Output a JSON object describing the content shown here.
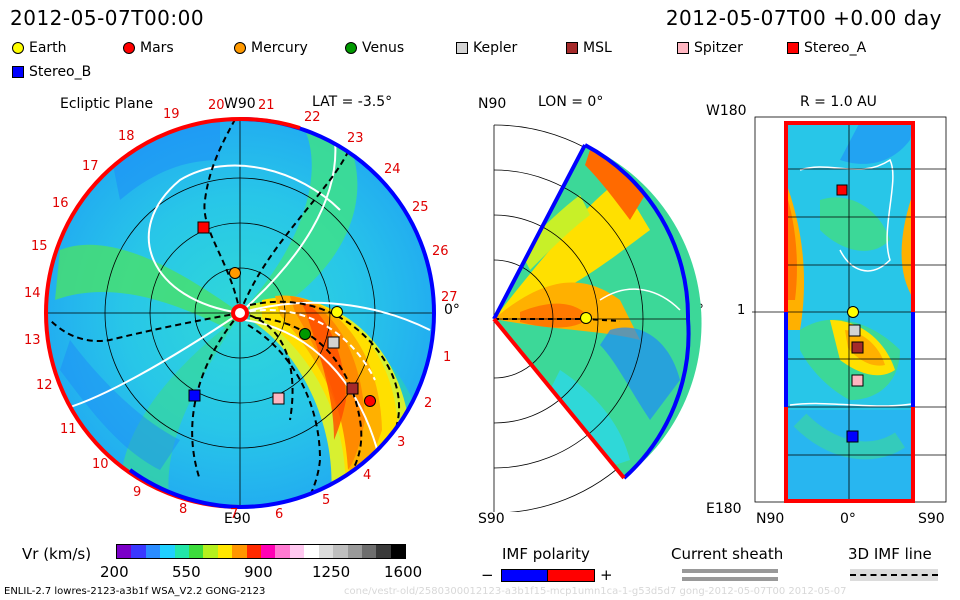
{
  "header": {
    "left_time": "2012-05-07T00:00",
    "right_time": "2012-05-07T00 +0.00 day"
  },
  "legend": {
    "items": [
      {
        "label": "Earth",
        "color": "#ffff00",
        "shape": "circle"
      },
      {
        "label": "Mars",
        "color": "#ff0000",
        "shape": "circle"
      },
      {
        "label": "Mercury",
        "color": "#ff9900",
        "shape": "circle"
      },
      {
        "label": "Venus",
        "color": "#009900",
        "shape": "circle"
      },
      {
        "label": "Kepler",
        "color": "#d3d3d3",
        "shape": "square"
      },
      {
        "label": "MSL",
        "color": "#a52a2a",
        "shape": "square"
      },
      {
        "label": "Spitzer",
        "color": "#ffb6c1",
        "shape": "square"
      },
      {
        "label": "Stereo_A",
        "color": "#ff0000",
        "shape": "square"
      },
      {
        "label": "Stereo_B",
        "color": "#0000ff",
        "shape": "square"
      }
    ]
  },
  "ecliptic": {
    "title": "Ecliptic Plane",
    "lat_label": "LAT = -3.5°",
    "top_label": "W90",
    "bottom_label": "E90",
    "right_label": "0°",
    "ticks": [
      "1",
      "2",
      "3",
      "4",
      "5",
      "6",
      "7",
      "8",
      "9",
      "10",
      "11",
      "12",
      "13",
      "14",
      "15",
      "16",
      "17",
      "18",
      "19",
      "20",
      "21",
      "22",
      "23",
      "24",
      "25",
      "26",
      "27"
    ]
  },
  "meridional": {
    "lon_label": "LON = 0°",
    "top_label": "N90",
    "bottom_label": "S90",
    "right_label": "0°"
  },
  "radial": {
    "title": "R = 1.0 AU",
    "top_left_label": "W180",
    "bottom_left_label": "E180",
    "left_mid_label": "1",
    "x_labels": [
      "N90",
      "0°",
      "S90"
    ]
  },
  "colorbar": {
    "label": "Vr (km/s)",
    "ticks": [
      "200",
      "550",
      "900",
      "1250",
      "1600"
    ],
    "colors": [
      "#7b00c8",
      "#3a38ff",
      "#2a8cff",
      "#1fd0ff",
      "#22e6a8",
      "#3cdc3c",
      "#b4f01e",
      "#ffe600",
      "#ff9600",
      "#ff2a00",
      "#ff00b4",
      "#ff7ad2",
      "#ffc8f0",
      "#ffffff",
      "#dcdcdc",
      "#bebebe",
      "#9a9a9a",
      "#6e6e6e",
      "#3a3a3a",
      "#000000"
    ]
  },
  "imf": {
    "label": "IMF polarity",
    "minus": "−",
    "plus": "+"
  },
  "current_sheath": {
    "label": "Current sheath"
  },
  "imf_line": {
    "label": "3D IMF line"
  },
  "footer": {
    "version": "ENLIL-2.7 lowres-2123-a3b1f WSA_V2.2 GONG-2123",
    "watermark": "cone/vestr-old/2580300012123-a3b1f15-mcp1umn1ca-1-g53d5d7 gong-2012-05-07T00 2012-05-07"
  }
}
